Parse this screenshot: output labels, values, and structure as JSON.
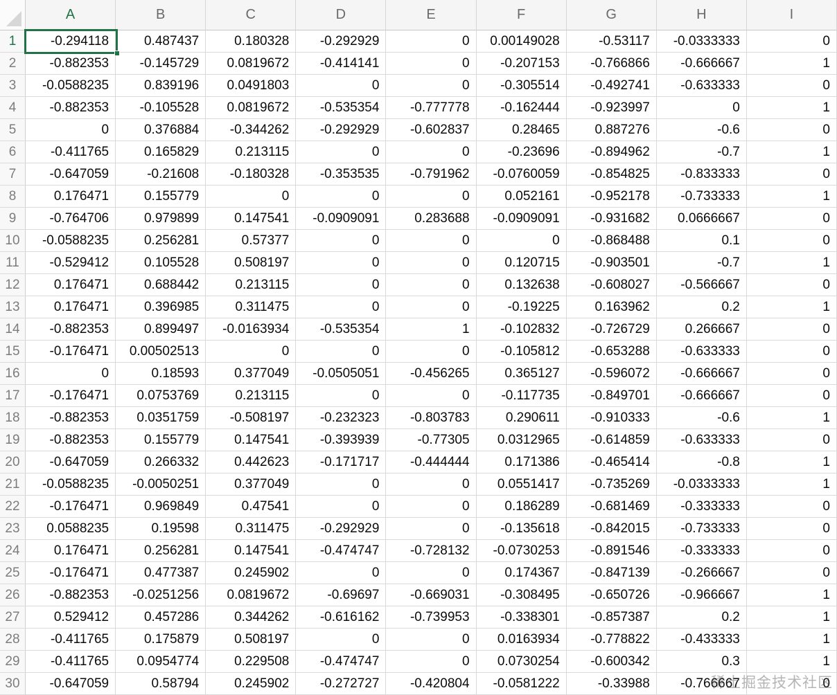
{
  "colors": {
    "accent_green": "#217346",
    "grid_line": "#d9d9d9",
    "header_bg": "#f5f5f6",
    "header_text": "#6a6a6a",
    "cell_text": "#0b0b0b"
  },
  "selection": {
    "active_cell": "A1"
  },
  "watermark": {
    "text": "稀土掘金技术社区"
  },
  "sheet": {
    "columns": [
      "A",
      "B",
      "C",
      "D",
      "E",
      "F",
      "G",
      "H",
      "I"
    ],
    "row_numbers": [
      1,
      2,
      3,
      4,
      5,
      6,
      7,
      8,
      9,
      10,
      11,
      12,
      13,
      14,
      15,
      16,
      17,
      18,
      19,
      20,
      21,
      22,
      23,
      24,
      25,
      26,
      27,
      28,
      29,
      30
    ],
    "rows": [
      [
        "-0.294118",
        "0.487437",
        "0.180328",
        "-0.292929",
        "0",
        "0.00149028",
        "-0.53117",
        "-0.0333333",
        "0"
      ],
      [
        "-0.882353",
        "-0.145729",
        "0.0819672",
        "-0.414141",
        "0",
        "-0.207153",
        "-0.766866",
        "-0.666667",
        "1"
      ],
      [
        "-0.0588235",
        "0.839196",
        "0.0491803",
        "0",
        "0",
        "-0.305514",
        "-0.492741",
        "-0.633333",
        "0"
      ],
      [
        "-0.882353",
        "-0.105528",
        "0.0819672",
        "-0.535354",
        "-0.777778",
        "-0.162444",
        "-0.923997",
        "0",
        "1"
      ],
      [
        "0",
        "0.376884",
        "-0.344262",
        "-0.292929",
        "-0.602837",
        "0.28465",
        "0.887276",
        "-0.6",
        "0"
      ],
      [
        "-0.411765",
        "0.165829",
        "0.213115",
        "0",
        "0",
        "-0.23696",
        "-0.894962",
        "-0.7",
        "1"
      ],
      [
        "-0.647059",
        "-0.21608",
        "-0.180328",
        "-0.353535",
        "-0.791962",
        "-0.0760059",
        "-0.854825",
        "-0.833333",
        "0"
      ],
      [
        "0.176471",
        "0.155779",
        "0",
        "0",
        "0",
        "0.052161",
        "-0.952178",
        "-0.733333",
        "1"
      ],
      [
        "-0.764706",
        "0.979899",
        "0.147541",
        "-0.0909091",
        "0.283688",
        "-0.0909091",
        "-0.931682",
        "0.0666667",
        "0"
      ],
      [
        "-0.0588235",
        "0.256281",
        "0.57377",
        "0",
        "0",
        "0",
        "-0.868488",
        "0.1",
        "0"
      ],
      [
        "-0.529412",
        "0.105528",
        "0.508197",
        "0",
        "0",
        "0.120715",
        "-0.903501",
        "-0.7",
        "1"
      ],
      [
        "0.176471",
        "0.688442",
        "0.213115",
        "0",
        "0",
        "0.132638",
        "-0.608027",
        "-0.566667",
        "0"
      ],
      [
        "0.176471",
        "0.396985",
        "0.311475",
        "0",
        "0",
        "-0.19225",
        "0.163962",
        "0.2",
        "1"
      ],
      [
        "-0.882353",
        "0.899497",
        "-0.0163934",
        "-0.535354",
        "1",
        "-0.102832",
        "-0.726729",
        "0.266667",
        "0"
      ],
      [
        "-0.176471",
        "0.00502513",
        "0",
        "0",
        "0",
        "-0.105812",
        "-0.653288",
        "-0.633333",
        "0"
      ],
      [
        "0",
        "0.18593",
        "0.377049",
        "-0.0505051",
        "-0.456265",
        "0.365127",
        "-0.596072",
        "-0.666667",
        "0"
      ],
      [
        "-0.176471",
        "0.0753769",
        "0.213115",
        "0",
        "0",
        "-0.117735",
        "-0.849701",
        "-0.666667",
        "0"
      ],
      [
        "-0.882353",
        "0.0351759",
        "-0.508197",
        "-0.232323",
        "-0.803783",
        "0.290611",
        "-0.910333",
        "-0.6",
        "1"
      ],
      [
        "-0.882353",
        "0.155779",
        "0.147541",
        "-0.393939",
        "-0.77305",
        "0.0312965",
        "-0.614859",
        "-0.633333",
        "0"
      ],
      [
        "-0.647059",
        "0.266332",
        "0.442623",
        "-0.171717",
        "-0.444444",
        "0.171386",
        "-0.465414",
        "-0.8",
        "1"
      ],
      [
        "-0.0588235",
        "-0.0050251",
        "0.377049",
        "0",
        "0",
        "0.0551417",
        "-0.735269",
        "-0.0333333",
        "1"
      ],
      [
        "-0.176471",
        "0.969849",
        "0.47541",
        "0",
        "0",
        "0.186289",
        "-0.681469",
        "-0.333333",
        "0"
      ],
      [
        "0.0588235",
        "0.19598",
        "0.311475",
        "-0.292929",
        "0",
        "-0.135618",
        "-0.842015",
        "-0.733333",
        "0"
      ],
      [
        "0.176471",
        "0.256281",
        "0.147541",
        "-0.474747",
        "-0.728132",
        "-0.0730253",
        "-0.891546",
        "-0.333333",
        "0"
      ],
      [
        "-0.176471",
        "0.477387",
        "0.245902",
        "0",
        "0",
        "0.174367",
        "-0.847139",
        "-0.266667",
        "0"
      ],
      [
        "-0.882353",
        "-0.0251256",
        "0.0819672",
        "-0.69697",
        "-0.669031",
        "-0.308495",
        "-0.650726",
        "-0.966667",
        "1"
      ],
      [
        "0.529412",
        "0.457286",
        "0.344262",
        "-0.616162",
        "-0.739953",
        "-0.338301",
        "-0.857387",
        "0.2",
        "1"
      ],
      [
        "-0.411765",
        "0.175879",
        "0.508197",
        "0",
        "0",
        "0.0163934",
        "-0.778822",
        "-0.433333",
        "1"
      ],
      [
        "-0.411765",
        "0.0954774",
        "0.229508",
        "-0.474747",
        "0",
        "0.0730254",
        "-0.600342",
        "0.3",
        "1"
      ],
      [
        "-0.647059",
        "0.58794",
        "0.245902",
        "-0.272727",
        "-0.420804",
        "-0.0581222",
        "-0.33988",
        "-0.766667",
        "0"
      ]
    ]
  }
}
